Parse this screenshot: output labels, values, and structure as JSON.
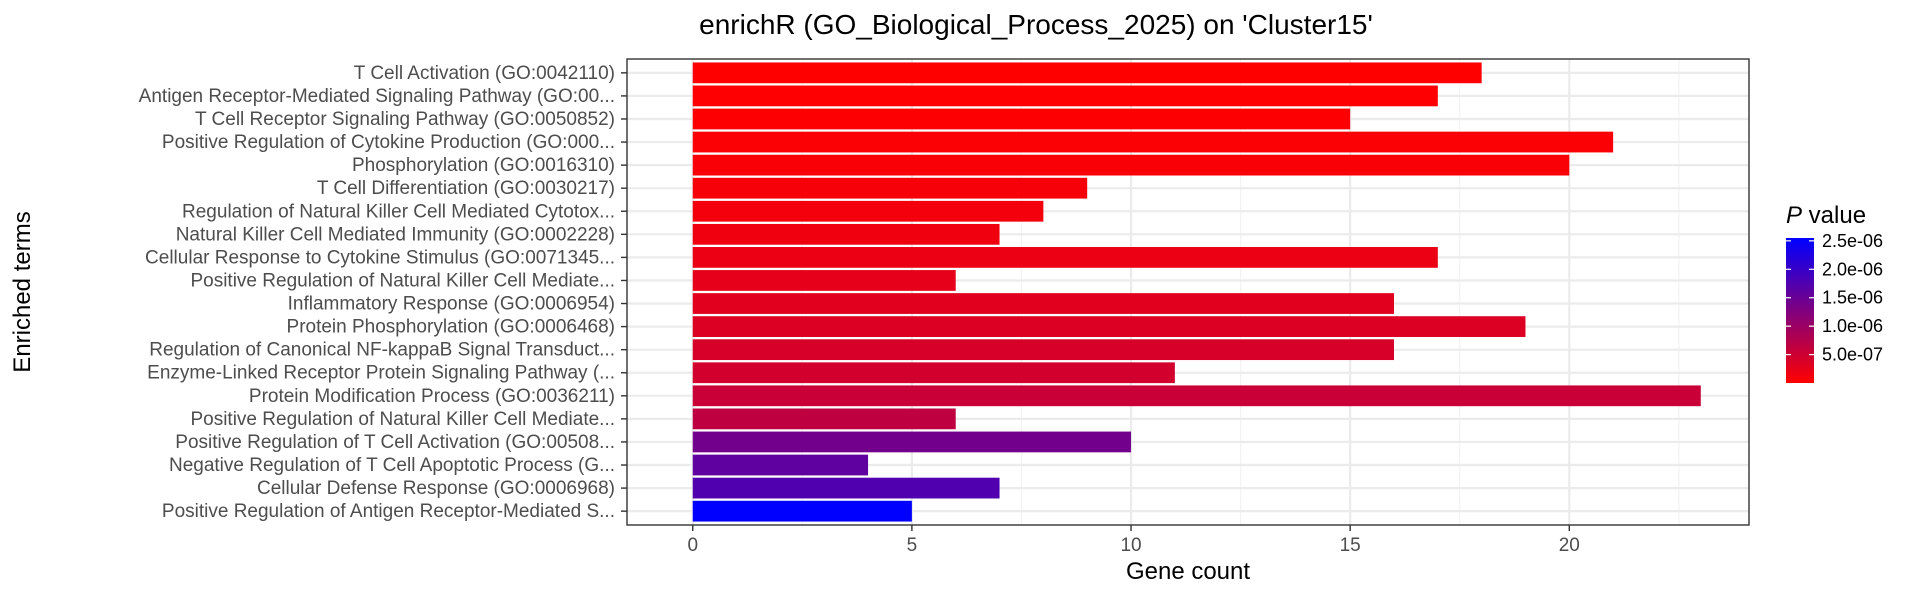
{
  "chart_data": {
    "type": "bar",
    "orientation": "horizontal",
    "title": "enrichR (GO_Biological_Process_2025) on 'Cluster15'",
    "xlabel": "Gene count",
    "ylabel": "Enriched terms",
    "xlim": [
      -1.5,
      24.1
    ],
    "xticks": [
      0,
      5,
      10,
      15,
      20
    ],
    "grid": true,
    "legend": {
      "title_italic": "P",
      "title_rest": " value",
      "position": "right",
      "type": "colorbar",
      "ticks": [
        "2.5e-06",
        "2.0e-06",
        "1.5e-06",
        "1.0e-06",
        "5.0e-07"
      ],
      "tick_values": [
        2.5e-06,
        2e-06,
        1.5e-06,
        1e-06,
        5e-07
      ],
      "range": [
        1e-09,
        2.55e-06
      ]
    },
    "colors": {
      "low": "#ff0000",
      "high": "#0000ff"
    },
    "bars": [
      {
        "term": "T Cell Activation (GO:0042110)",
        "count": 18,
        "p": 4e-09
      },
      {
        "term": "Antigen Receptor-Mediated Signaling Pathway (GO:00...",
        "count": 17,
        "p": 1e-08
      },
      {
        "term": "T Cell Receptor Signaling Pathway (GO:0050852)",
        "count": 15,
        "p": 2e-08
      },
      {
        "term": "Positive Regulation of Cytokine Production (GO:000...",
        "count": 21,
        "p": 4e-08
      },
      {
        "term": "Phosphorylation (GO:0016310)",
        "count": 20,
        "p": 6e-08
      },
      {
        "term": "T Cell Differentiation (GO:0030217)",
        "count": 9,
        "p": 9e-08
      },
      {
        "term": "Regulation of Natural Killer Cell Mediated Cytotox...",
        "count": 8,
        "p": 1.2e-07
      },
      {
        "term": "Natural Killer Cell Mediated Immunity (GO:0002228)",
        "count": 7,
        "p": 1.5e-07
      },
      {
        "term": "Cellular Response to Cytokine Stimulus (GO:0071345...",
        "count": 17,
        "p": 2e-07
      },
      {
        "term": "Positive Regulation of Natural Killer Cell Mediate...",
        "count": 6,
        "p": 2.5e-07
      },
      {
        "term": "Inflammatory Response (GO:0006954)",
        "count": 16,
        "p": 3e-07
      },
      {
        "term": "Protein Phosphorylation (GO:0006468)",
        "count": 19,
        "p": 3.5e-07
      },
      {
        "term": "Regulation of Canonical NF-kappaB Signal Transduct...",
        "count": 16,
        "p": 4e-07
      },
      {
        "term": "Enzyme-Linked Receptor Protein Signaling Pathway (...",
        "count": 11,
        "p": 4.5e-07
      },
      {
        "term": "Protein Modification Process (GO:0036211)",
        "count": 23,
        "p": 5.5e-07
      },
      {
        "term": "Positive Regulation of Natural Killer Cell Mediate...",
        "count": 6,
        "p": 6.5e-07
      },
      {
        "term": "Positive Regulation of T Cell Activation (GO:00508...",
        "count": 10,
        "p": 1.4e-06
      },
      {
        "term": "Negative Regulation of T Cell Apoptotic Process (G...",
        "count": 4,
        "p": 1.6e-06
      },
      {
        "term": "Cellular Defense Response (GO:0006968)",
        "count": 7,
        "p": 1.75e-06
      },
      {
        "term": "Positive Regulation of Antigen Receptor-Mediated S...",
        "count": 5,
        "p": 2.55e-06
      }
    ]
  }
}
